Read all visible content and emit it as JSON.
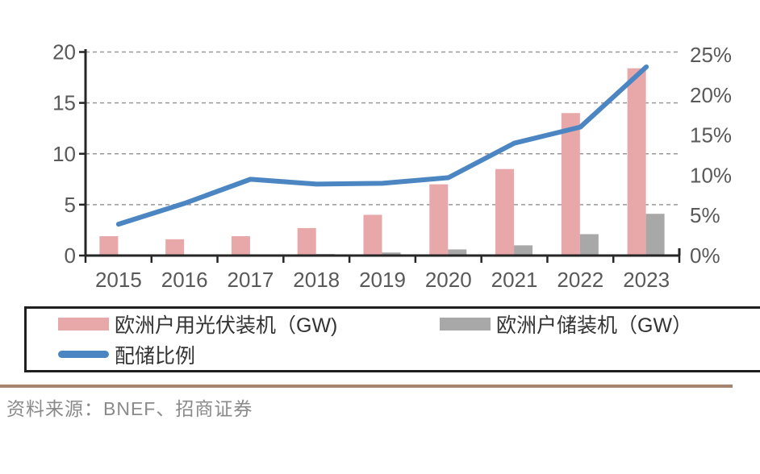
{
  "chart_data": {
    "type": "combo",
    "title": "",
    "categories": [
      "2015",
      "2016",
      "2017",
      "2018",
      "2019",
      "2020",
      "2021",
      "2022",
      "2023"
    ],
    "series": [
      {
        "name": "欧洲户用光伏装机（GW)",
        "type": "bar",
        "axis": "left",
        "unit": "GW",
        "color": "#E8A7A8",
        "values": [
          1.9,
          1.6,
          1.9,
          2.7,
          4.0,
          7.0,
          8.5,
          14.0,
          18.4
        ]
      },
      {
        "name": "欧洲户储装机（GW）",
        "type": "bar",
        "axis": "left",
        "unit": "GW",
        "color": "#A8A8A8",
        "values": [
          0.05,
          0.05,
          0.1,
          0.15,
          0.3,
          0.6,
          1.0,
          2.1,
          4.1
        ]
      },
      {
        "name": "配储比例",
        "type": "line",
        "axis": "right",
        "unit": "%",
        "color": "#4B86C2",
        "values": [
          3.9,
          6.5,
          9.5,
          8.9,
          9.0,
          9.7,
          14.0,
          16.0,
          23.5
        ]
      }
    ],
    "left_axis": {
      "min": 0,
      "max": 20,
      "tick_values": [
        0,
        5,
        10,
        15,
        20
      ],
      "tick_labels": [
        "0",
        "5",
        "10",
        "15",
        "20"
      ]
    },
    "right_axis": {
      "min": 0,
      "max": 25,
      "tick_values": [
        0,
        5,
        10,
        15,
        20,
        25
      ],
      "tick_labels": [
        "0%",
        "5%",
        "10%",
        "15%",
        "20%",
        "25%"
      ]
    },
    "grid": "horizontal-dashed",
    "legend_position": "bottom-box"
  },
  "source": {
    "text": "资料来源：BNEF、招商证券"
  },
  "colors": {
    "pv_bar": "#E8A7A8",
    "storage_bar": "#A8A8A8",
    "ratio_line": "#4B86C2",
    "axis_line": "#262626",
    "axis_text": "#595959",
    "gridline": "#999999",
    "legend_border": "#1F1F1F",
    "legend_text": "#333333",
    "divider": "#A7846F",
    "source_text": "#8A8A8A"
  }
}
